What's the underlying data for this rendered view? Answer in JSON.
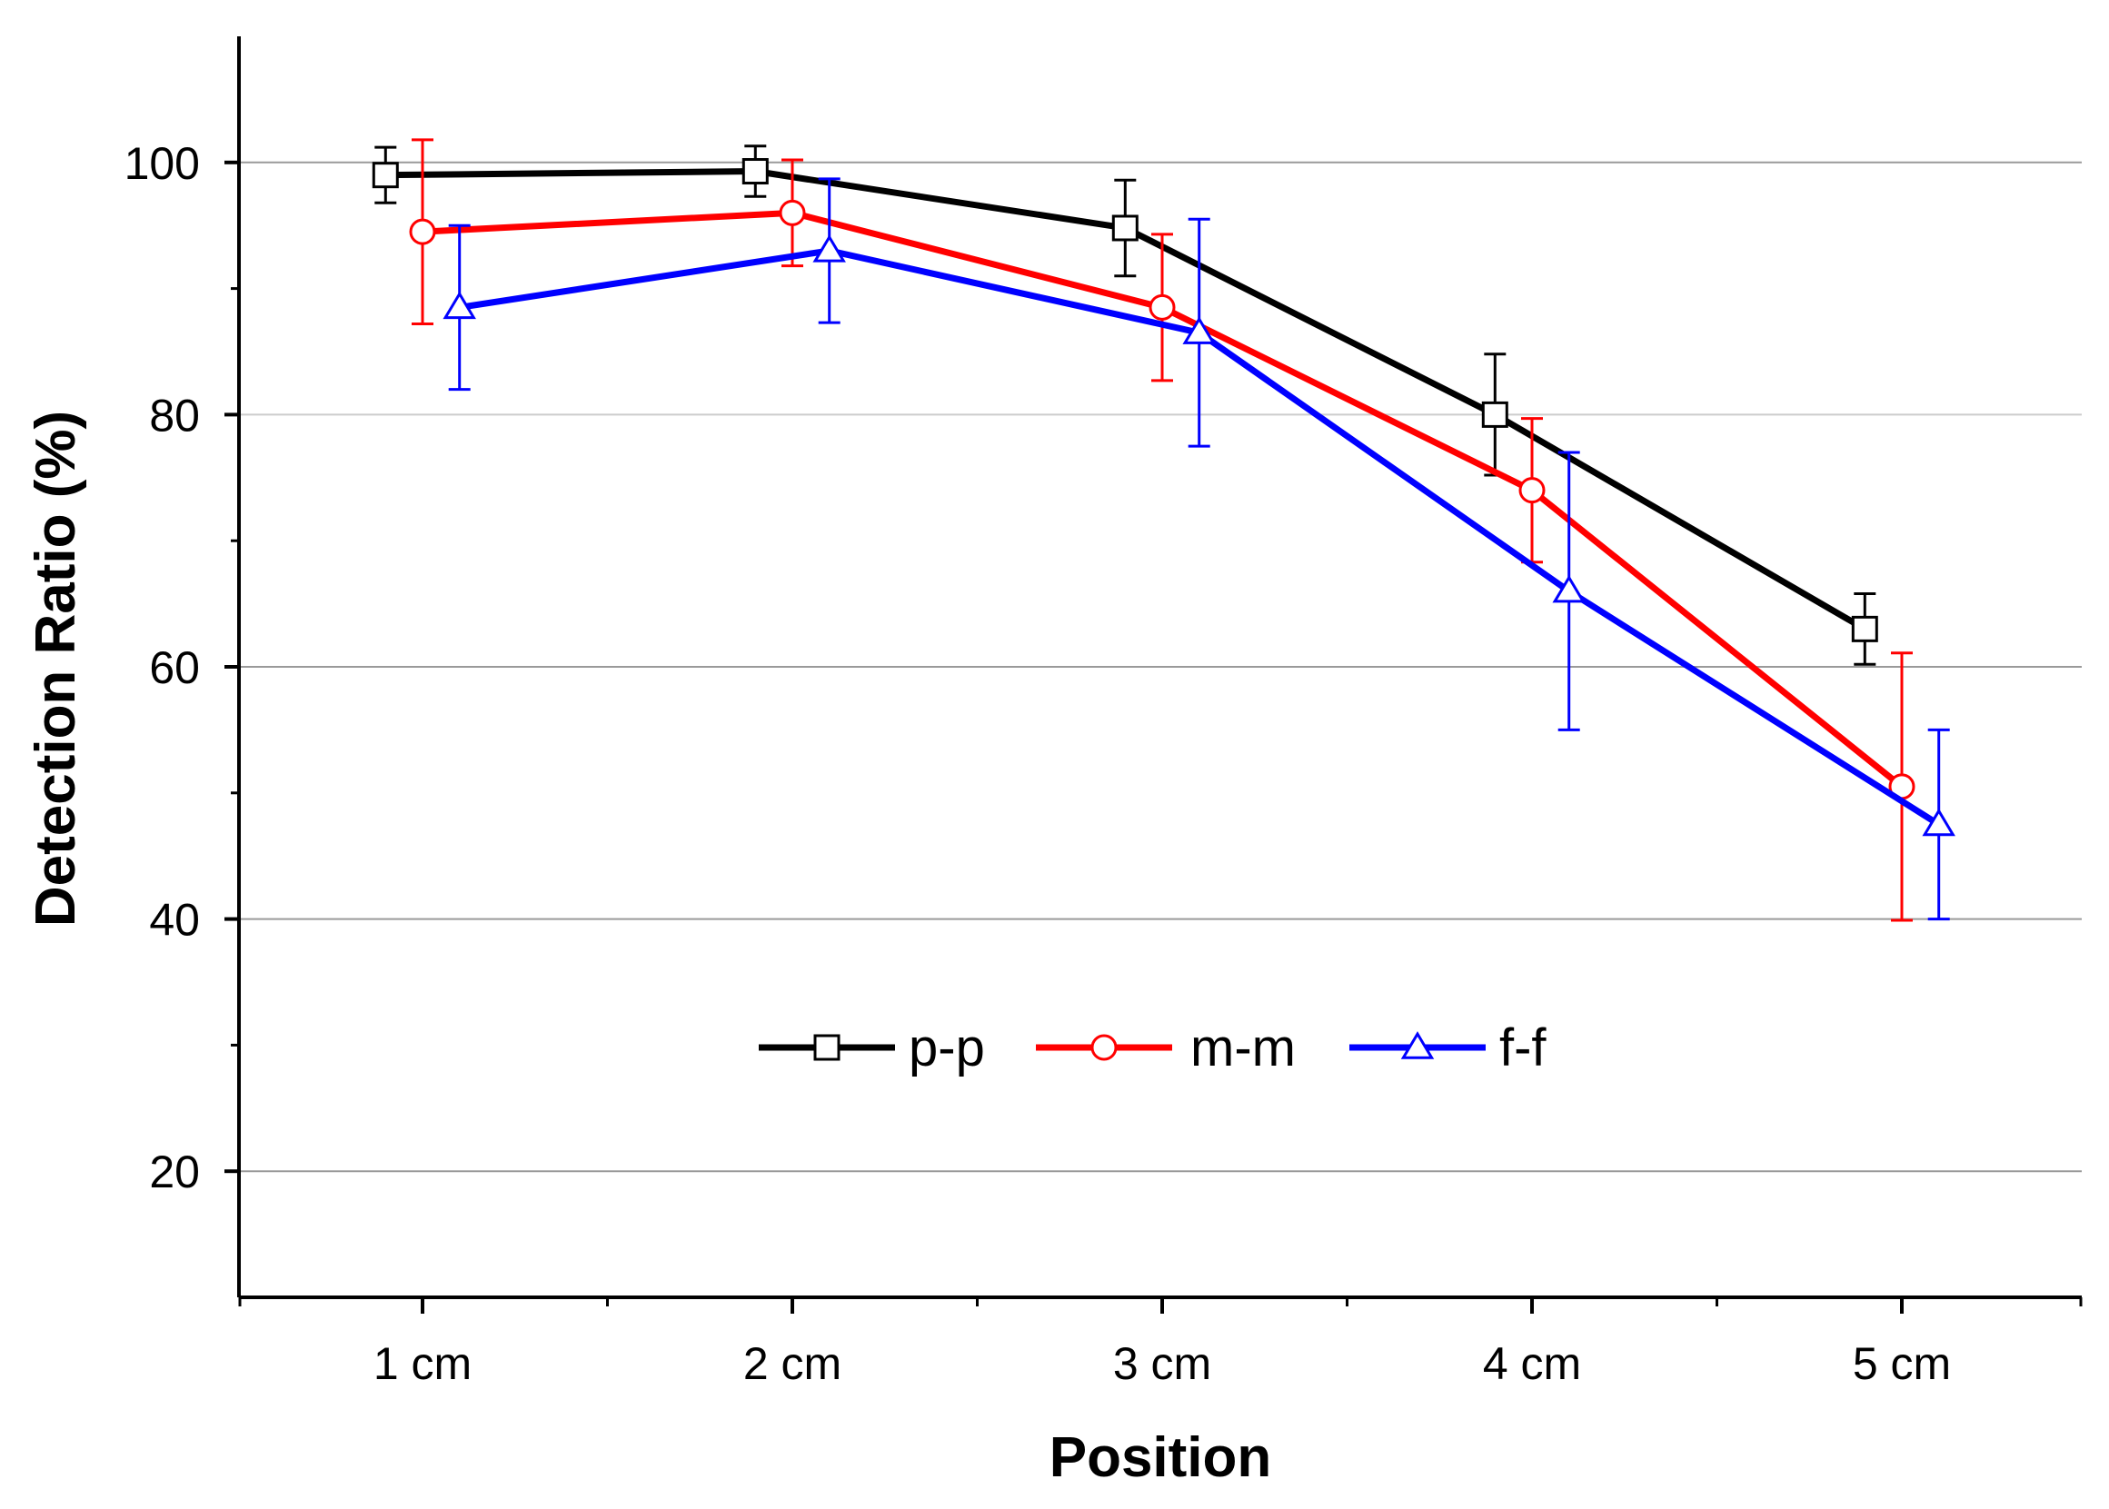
{
  "chart_data": {
    "type": "line",
    "title": "",
    "xlabel": "Position",
    "ylabel": "Detection Ratio (%)",
    "categories": [
      "1 cm",
      "2 cm",
      "3 cm",
      "4 cm",
      "5 cm"
    ],
    "ylim": [
      10,
      110
    ],
    "yticks": [
      20,
      40,
      60,
      80,
      100
    ],
    "y_minor_step": 10,
    "grid": "horizontal at major ticks",
    "legend": "center, inside plot",
    "series": [
      {
        "name": "p-p",
        "color": "#000000",
        "marker": "square",
        "offset": -0.1,
        "values": [
          99.0,
          99.3,
          94.8,
          80.0,
          63.0
        ],
        "errors": [
          2.2,
          2.0,
          3.8,
          4.8,
          2.8
        ]
      },
      {
        "name": "m-m",
        "color": "#ff0000",
        "marker": "circle",
        "offset": 0.0,
        "values": [
          94.5,
          96.0,
          88.5,
          74.0,
          50.5
        ],
        "errors": [
          7.3,
          4.2,
          5.8,
          5.7,
          10.6
        ]
      },
      {
        "name": "f-f",
        "color": "#0000ff",
        "marker": "triangle",
        "offset": 0.1,
        "values": [
          88.5,
          93.0,
          86.5,
          66.0,
          47.5
        ],
        "errors": [
          6.5,
          5.7,
          9.0,
          11.0,
          7.5
        ]
      }
    ]
  }
}
